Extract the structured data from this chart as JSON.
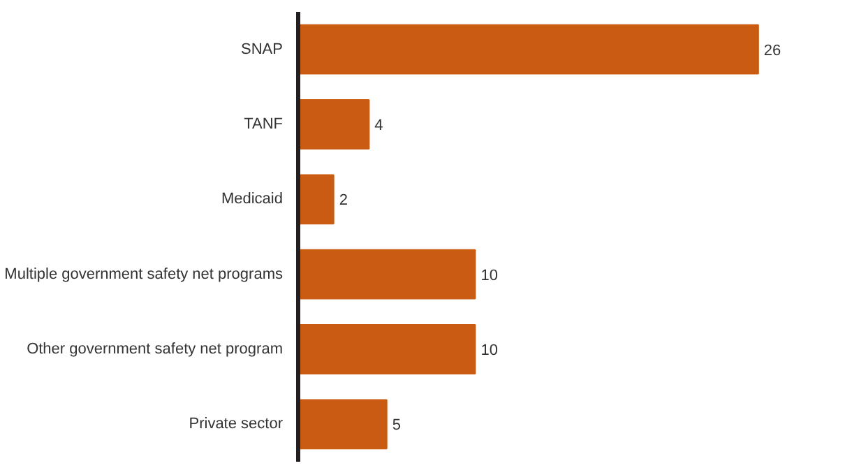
{
  "chart_data": {
    "type": "bar",
    "orientation": "horizontal",
    "categories": [
      "SNAP",
      "TANF",
      "Medicaid",
      "Multiple government safety net programs",
      "Other government safety net program",
      "Private sector"
    ],
    "values": [
      26,
      4,
      2,
      10,
      10,
      5
    ],
    "color": "#c95c12",
    "data_labels": true,
    "grid": false
  }
}
